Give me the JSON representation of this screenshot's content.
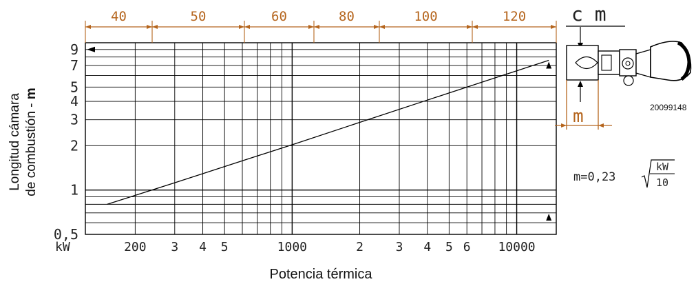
{
  "chart_data": {
    "type": "line",
    "title": "",
    "xlabel": "Potencia térmica",
    "ylabel_line1": "Longitud cámara",
    "ylabel_line2": "de combustión - ",
    "ylabel_bold": "m",
    "x_scale": "log",
    "y_scale": "log",
    "xlim": [
      120,
      15000
    ],
    "ylim": [
      0.5,
      10
    ],
    "x_unit_label": "kW",
    "x_ticks": [
      {
        "v": 200,
        "label": "200"
      },
      {
        "v": 300,
        "label": "3"
      },
      {
        "v": 400,
        "label": "4"
      },
      {
        "v": 500,
        "label": "5"
      },
      {
        "v": 1000,
        "label": "1000"
      },
      {
        "v": 2000,
        "label": "2"
      },
      {
        "v": 3000,
        "label": "3"
      },
      {
        "v": 4000,
        "label": "4"
      },
      {
        "v": 5000,
        "label": "5"
      },
      {
        "v": 6000,
        "label": "6"
      },
      {
        "v": 10000,
        "label": "10000"
      }
    ],
    "y_ticks": [
      {
        "v": 0.5,
        "label": "0,5"
      },
      {
        "v": 1,
        "label": "1"
      },
      {
        "v": 2,
        "label": "2"
      },
      {
        "v": 3,
        "label": "3"
      },
      {
        "v": 4,
        "label": "4"
      },
      {
        "v": 5,
        "label": "5"
      },
      {
        "v": 7,
        "label": "7"
      },
      {
        "v": 9,
        "label": "9"
      }
    ],
    "series": [
      {
        "x": [
          150,
          300,
          600,
          1000,
          2000,
          4000,
          8000,
          13900
        ],
        "y": [
          0.8,
          1.12,
          1.58,
          2.03,
          2.88,
          4.08,
          5.77,
          7.6
        ]
      }
    ],
    "top_axis": {
      "unit_label": "c m",
      "values": [
        "40",
        "50",
        "60",
        "80",
        "100",
        "120"
      ]
    },
    "formula": {
      "lhs": "m=0,23",
      "numerator": "kW",
      "denominator": "10"
    },
    "figure_code": "20099148",
    "diagram_dimension_label": "m"
  }
}
